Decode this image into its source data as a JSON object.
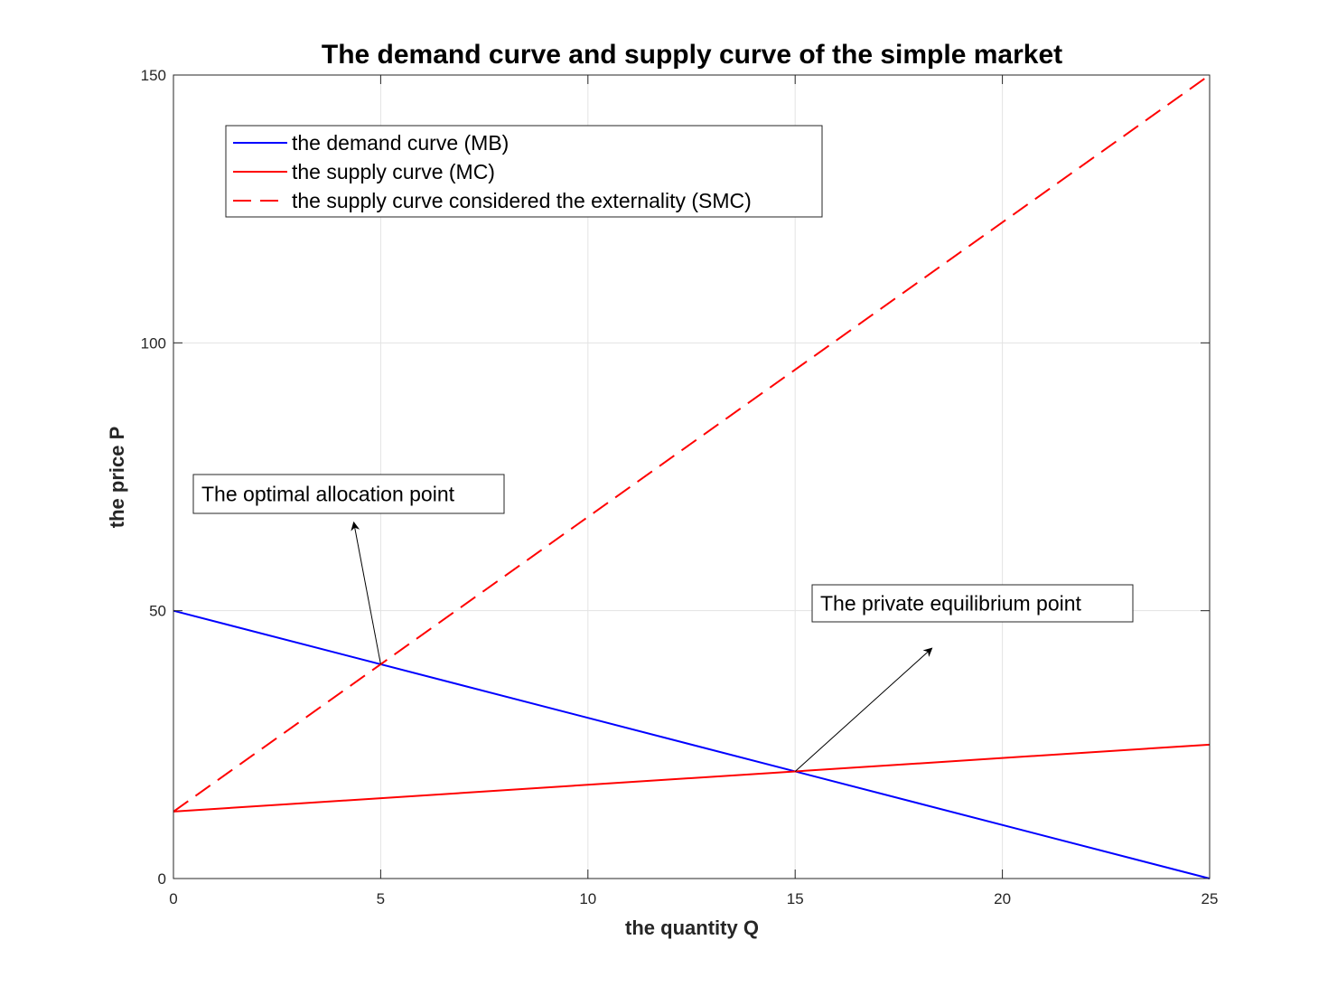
{
  "chart_data": {
    "type": "line",
    "title": "The demand curve and supply curve of the simple market",
    "xlabel": "the quantity Q",
    "ylabel": "the price P",
    "xlim": [
      0,
      25
    ],
    "ylim": [
      0,
      150
    ],
    "xticks": [
      0,
      5,
      10,
      15,
      20,
      25
    ],
    "yticks": [
      0,
      50,
      100,
      150
    ],
    "grid": true,
    "legend_position": "top-left",
    "series": [
      {
        "name": "the demand curve (MB)",
        "color": "#0000ff",
        "style": "solid",
        "x": [
          0,
          25
        ],
        "y": [
          50,
          0
        ]
      },
      {
        "name": "the supply curve (MC)",
        "color": "#ff0000",
        "style": "solid",
        "x": [
          0,
          25
        ],
        "y": [
          12.5,
          25
        ]
      },
      {
        "name": "the supply curve considered the externality (SMC)",
        "color": "#ff0000",
        "style": "dashed",
        "x": [
          0,
          25
        ],
        "y": [
          12.5,
          150
        ]
      }
    ],
    "annotations": [
      {
        "text": "The optimal allocation point",
        "point": [
          5,
          40
        ],
        "arrow_tip": [
          4.35,
          66.5
        ]
      },
      {
        "text": "The private equilibrium point",
        "point": [
          15,
          20
        ],
        "arrow_tip": [
          18.3,
          43
        ]
      }
    ]
  }
}
